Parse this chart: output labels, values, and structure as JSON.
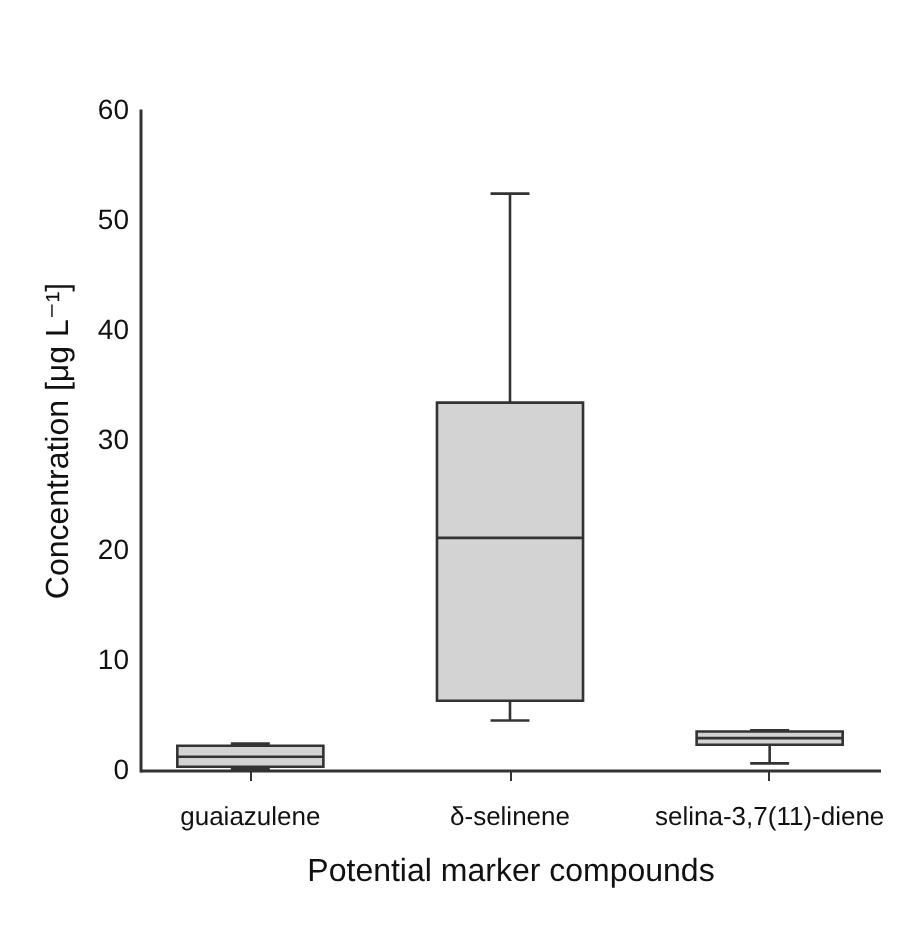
{
  "chart_data": {
    "type": "box",
    "xlabel": "Potential marker compounds",
    "ylabel": "Concentration [μg L⁻¹]",
    "categories": [
      "guaiazulene",
      "δ-selinene",
      "selina-3,7(11)-diene"
    ],
    "boxes": [
      {
        "low": 0.1,
        "q1": 0.3,
        "median": 1.2,
        "q3": 2.2,
        "high": 2.4
      },
      {
        "low": 4.5,
        "q1": 6.3,
        "median": 21.1,
        "q3": 33.4,
        "high": 52.4
      },
      {
        "low": 0.6,
        "q1": 2.3,
        "median": 2.9,
        "q3": 3.5,
        "high": 3.6
      }
    ],
    "color": "#d3d3d3",
    "ylim": [
      0,
      60
    ],
    "yticks": [
      0,
      10,
      20,
      30,
      40,
      50,
      60
    ],
    "grid": false
  }
}
